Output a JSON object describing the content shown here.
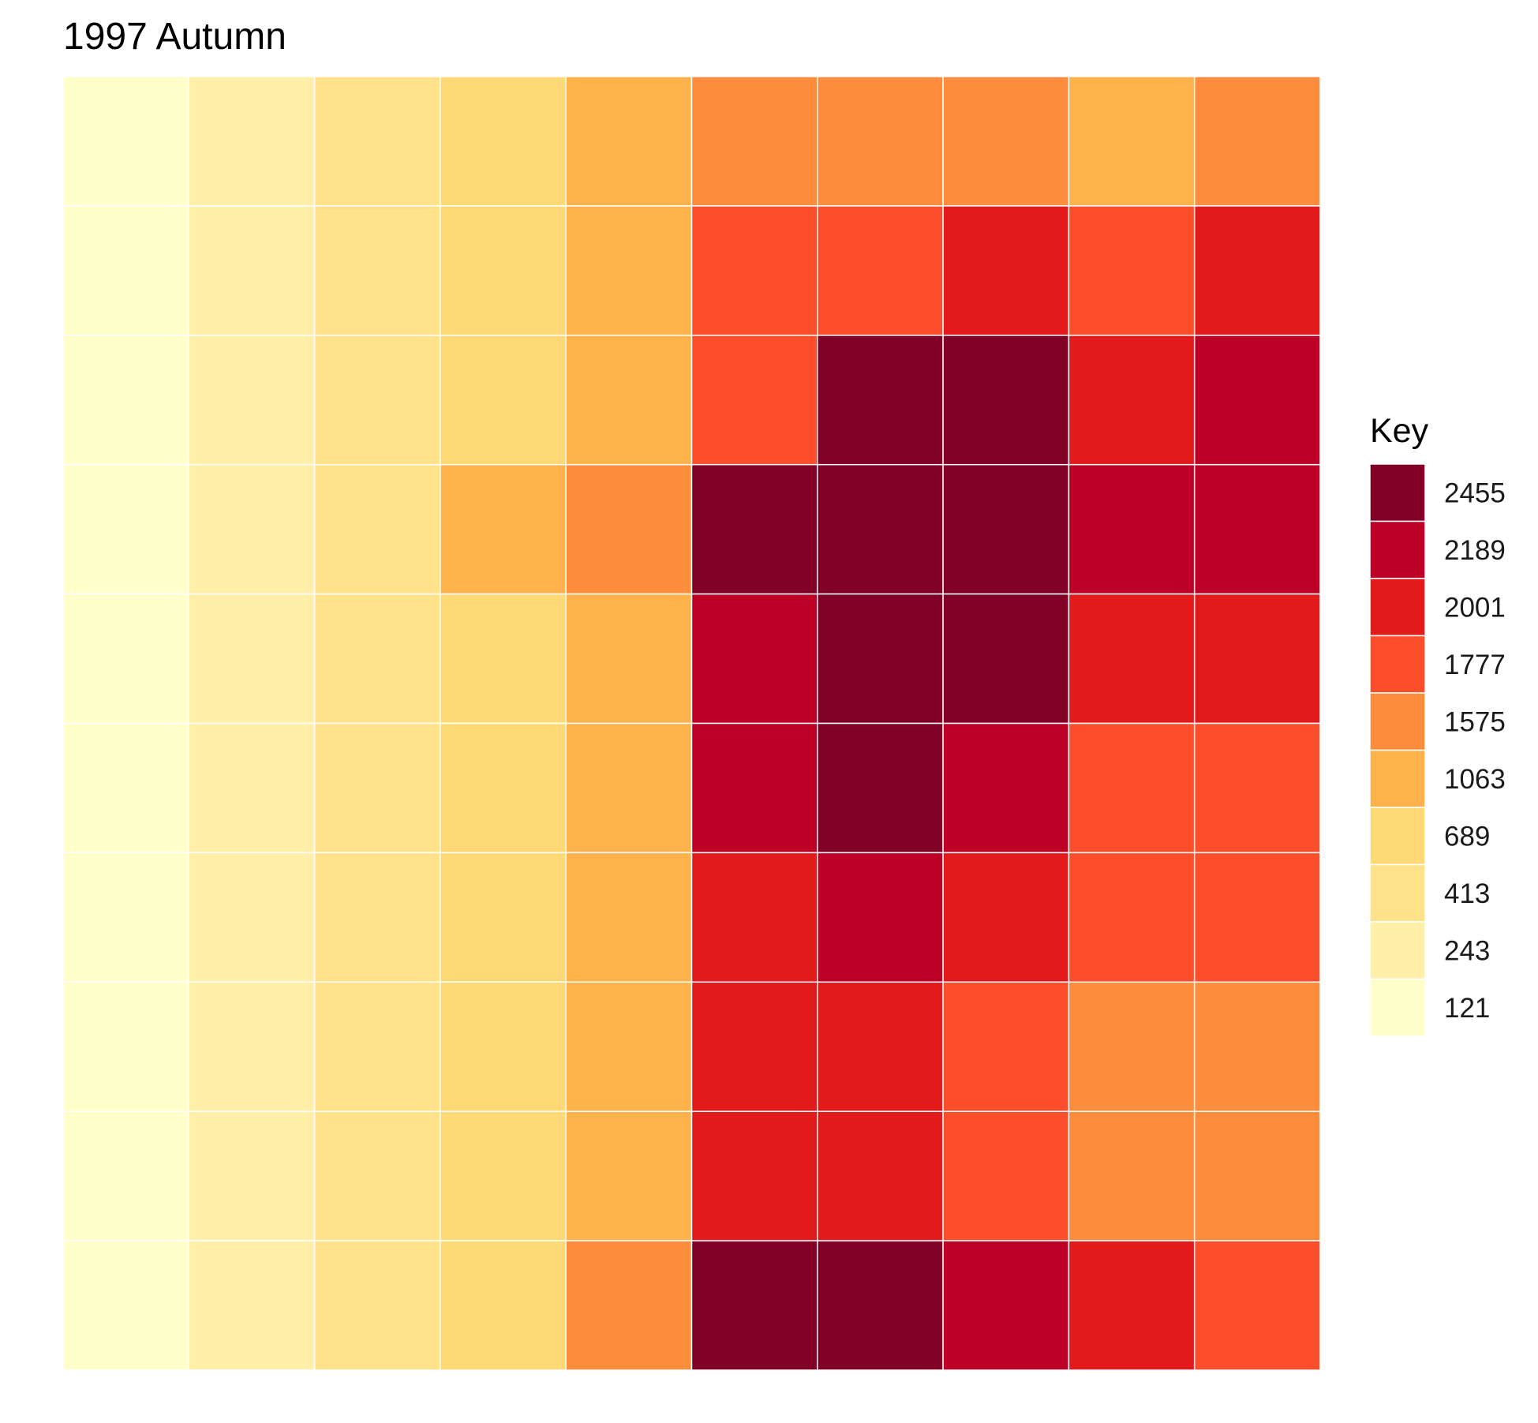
{
  "chart_data": {
    "type": "heatmap",
    "title": "1997 Autumn",
    "xlabel": "",
    "ylabel": "",
    "rows": 10,
    "cols": 10,
    "legend": {
      "title": "Key",
      "placement": "right",
      "levels": [
        {
          "label": "2455",
          "color": "#800026"
        },
        {
          "label": "2189",
          "color": "#BD0026"
        },
        {
          "label": "2001",
          "color": "#E31A1C"
        },
        {
          "label": "1777",
          "color": "#FC4E2A"
        },
        {
          "label": "1575",
          "color": "#FD8D3C"
        },
        {
          "label": "1063",
          "color": "#FEB24C"
        },
        {
          "label": "689",
          "color": "#FED976"
        },
        {
          "label": "413",
          "color": "#FFE28A"
        },
        {
          "label": "243",
          "color": "#FFEFA8"
        },
        {
          "label": "121",
          "color": "#FFFFCC"
        }
      ]
    },
    "grid_lines": true,
    "grid_line_color": "#ffffff",
    "values": [
      [
        121,
        243,
        413,
        689,
        1063,
        1575,
        1575,
        1575,
        1063,
        1575
      ],
      [
        121,
        243,
        413,
        689,
        1063,
        1777,
        1777,
        2001,
        1777,
        2001
      ],
      [
        121,
        243,
        413,
        689,
        1063,
        1777,
        2455,
        2455,
        2001,
        2189
      ],
      [
        121,
        243,
        413,
        1063,
        1575,
        2455,
        2455,
        2455,
        2189,
        2189
      ],
      [
        121,
        243,
        413,
        689,
        1063,
        2189,
        2455,
        2455,
        2001,
        2001
      ],
      [
        121,
        243,
        413,
        689,
        1063,
        2189,
        2455,
        2189,
        1777,
        1777
      ],
      [
        121,
        243,
        413,
        689,
        1063,
        2001,
        2189,
        2001,
        1777,
        1777
      ],
      [
        121,
        243,
        413,
        689,
        1063,
        2001,
        2001,
        1777,
        1575,
        1575
      ],
      [
        121,
        243,
        413,
        689,
        1063,
        2001,
        2001,
        1777,
        1575,
        1575
      ],
      [
        121,
        243,
        413,
        689,
        1575,
        2455,
        2455,
        2189,
        2001,
        1777
      ]
    ]
  }
}
